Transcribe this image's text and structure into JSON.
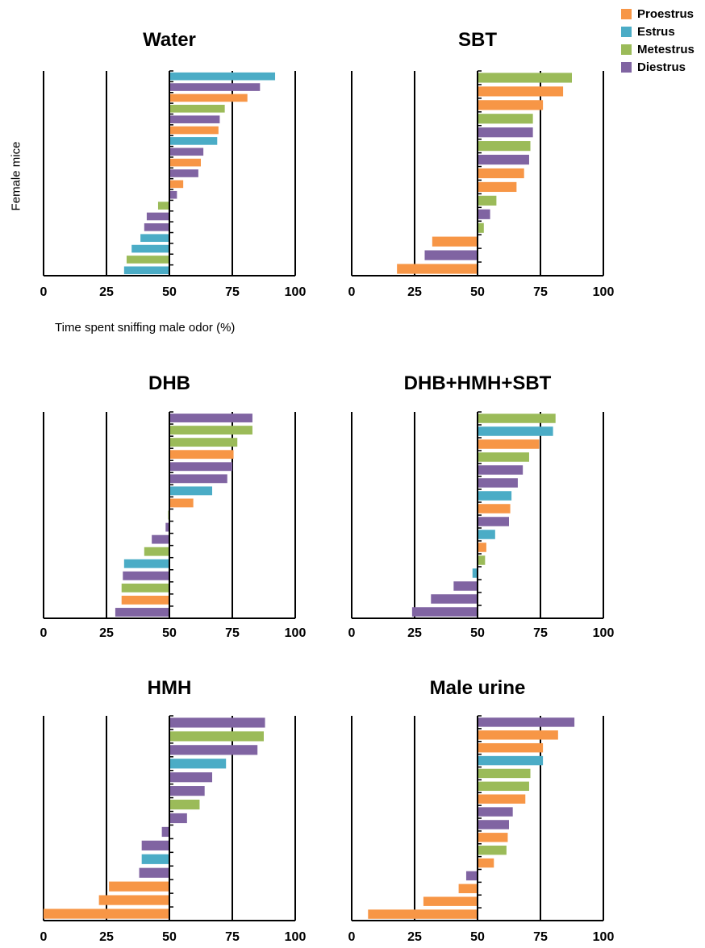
{
  "legend": [
    {
      "label": "Proestrus",
      "color": "#F79646"
    },
    {
      "label": "Estrus",
      "color": "#4BACC6"
    },
    {
      "label": "Metestrus",
      "color": "#9BBB59"
    },
    {
      "label": "Diestrus",
      "color": "#8064A2"
    }
  ],
  "ylabel": "Female mice",
  "xlabel": "Time spent  sniffing male odor (%)",
  "colors": {
    "Proestrus": "#F79646",
    "Estrus": "#4BACC6",
    "Metestrus": "#9BBB59",
    "Diestrus": "#8064A2"
  },
  "chart_data": [
    {
      "type": "bar",
      "orientation": "horizontal",
      "title": "Water",
      "xlim": [
        0,
        100
      ],
      "xticks": [
        "0",
        "25",
        "50",
        "75",
        "100"
      ],
      "baseline": 50,
      "bars": [
        {
          "stage": "Estrus",
          "value": 92
        },
        {
          "stage": "Diestrus",
          "value": 86
        },
        {
          "stage": "Proestrus",
          "value": 81
        },
        {
          "stage": "Metestrus",
          "value": 72
        },
        {
          "stage": "Diestrus",
          "value": 70
        },
        {
          "stage": "Proestrus",
          "value": 69.5
        },
        {
          "stage": "Estrus",
          "value": 69
        },
        {
          "stage": "Diestrus",
          "value": 63.5
        },
        {
          "stage": "Proestrus",
          "value": 62.5
        },
        {
          "stage": "Diestrus",
          "value": 61.5
        },
        {
          "stage": "Proestrus",
          "value": 55.5
        },
        {
          "stage": "Diestrus",
          "value": 53
        },
        {
          "stage": "Metestrus",
          "value": 45.5
        },
        {
          "stage": "Diestrus",
          "value": 41
        },
        {
          "stage": "Diestrus",
          "value": 40
        },
        {
          "stage": "Estrus",
          "value": 38.5
        },
        {
          "stage": "Estrus",
          "value": 35
        },
        {
          "stage": "Metestrus",
          "value": 33
        },
        {
          "stage": "Estrus",
          "value": 32
        }
      ]
    },
    {
      "type": "bar",
      "orientation": "horizontal",
      "title": "SBT",
      "xlim": [
        0,
        100
      ],
      "xticks": [
        "0",
        "25",
        "50",
        "75",
        "100"
      ],
      "baseline": 50,
      "bars": [
        {
          "stage": "Metestrus",
          "value": 87.5
        },
        {
          "stage": "Proestrus",
          "value": 84
        },
        {
          "stage": "Proestrus",
          "value": 76
        },
        {
          "stage": "Metestrus",
          "value": 72
        },
        {
          "stage": "Diestrus",
          "value": 72
        },
        {
          "stage": "Metestrus",
          "value": 71
        },
        {
          "stage": "Diestrus",
          "value": 70.5
        },
        {
          "stage": "Proestrus",
          "value": 68.5
        },
        {
          "stage": "Proestrus",
          "value": 65.5
        },
        {
          "stage": "Metestrus",
          "value": 57.5
        },
        {
          "stage": "Diestrus",
          "value": 55
        },
        {
          "stage": "Metestrus",
          "value": 52.5
        },
        {
          "stage": "Proestrus",
          "value": 32
        },
        {
          "stage": "Diestrus",
          "value": 29
        },
        {
          "stage": "Proestrus",
          "value": 18
        }
      ]
    },
    {
      "type": "bar",
      "orientation": "horizontal",
      "title": "DHB",
      "xlim": [
        0,
        100
      ],
      "xticks": [
        "0",
        "25",
        "50",
        "75",
        "100"
      ],
      "baseline": 50,
      "bars": [
        {
          "stage": "Diestrus",
          "value": 83
        },
        {
          "stage": "Metestrus",
          "value": 83
        },
        {
          "stage": "Metestrus",
          "value": 77
        },
        {
          "stage": "Proestrus",
          "value": 75.5
        },
        {
          "stage": "Diestrus",
          "value": 75
        },
        {
          "stage": "Diestrus",
          "value": 73
        },
        {
          "stage": "Estrus",
          "value": 67
        },
        {
          "stage": "Proestrus",
          "value": 59.5
        },
        {
          "stage": "Metestrus",
          "value": 49.5
        },
        {
          "stage": "Diestrus",
          "value": 48.5
        },
        {
          "stage": "Diestrus",
          "value": 43
        },
        {
          "stage": "Metestrus",
          "value": 40
        },
        {
          "stage": "Estrus",
          "value": 32
        },
        {
          "stage": "Diestrus",
          "value": 31.5
        },
        {
          "stage": "Metestrus",
          "value": 31
        },
        {
          "stage": "Proestrus",
          "value": 31
        },
        {
          "stage": "Diestrus",
          "value": 28.5
        }
      ]
    },
    {
      "type": "bar",
      "orientation": "horizontal",
      "title": "DHB+HMH+SBT",
      "xlim": [
        0,
        100
      ],
      "xticks": [
        "0",
        "25",
        "50",
        "75",
        "100"
      ],
      "baseline": 50,
      "bars": [
        {
          "stage": "Metestrus",
          "value": 81
        },
        {
          "stage": "Estrus",
          "value": 80
        },
        {
          "stage": "Proestrus",
          "value": 74.5
        },
        {
          "stage": "Metestrus",
          "value": 70.5
        },
        {
          "stage": "Diestrus",
          "value": 68
        },
        {
          "stage": "Diestrus",
          "value": 66
        },
        {
          "stage": "Estrus",
          "value": 63.5
        },
        {
          "stage": "Proestrus",
          "value": 63
        },
        {
          "stage": "Diestrus",
          "value": 62.5
        },
        {
          "stage": "Estrus",
          "value": 57
        },
        {
          "stage": "Proestrus",
          "value": 53.5
        },
        {
          "stage": "Metestrus",
          "value": 53
        },
        {
          "stage": "Estrus",
          "value": 48
        },
        {
          "stage": "Diestrus",
          "value": 40.5
        },
        {
          "stage": "Diestrus",
          "value": 31.5
        },
        {
          "stage": "Diestrus",
          "value": 24
        }
      ]
    },
    {
      "type": "bar",
      "orientation": "horizontal",
      "title": "HMH",
      "xlim": [
        0,
        100
      ],
      "xticks": [
        "0",
        "25",
        "50",
        "75",
        "100"
      ],
      "baseline": 50,
      "bars": [
        {
          "stage": "Diestrus",
          "value": 88
        },
        {
          "stage": "Metestrus",
          "value": 87.5
        },
        {
          "stage": "Diestrus",
          "value": 85
        },
        {
          "stage": "Estrus",
          "value": 72.5
        },
        {
          "stage": "Diestrus",
          "value": 67
        },
        {
          "stage": "Diestrus",
          "value": 64
        },
        {
          "stage": "Metestrus",
          "value": 62
        },
        {
          "stage": "Diestrus",
          "value": 57
        },
        {
          "stage": "Diestrus",
          "value": 47
        },
        {
          "stage": "Diestrus",
          "value": 39
        },
        {
          "stage": "Estrus",
          "value": 39
        },
        {
          "stage": "Diestrus",
          "value": 38
        },
        {
          "stage": "Proestrus",
          "value": 26
        },
        {
          "stage": "Proestrus",
          "value": 22
        },
        {
          "stage": "Proestrus",
          "value": 0
        }
      ]
    },
    {
      "type": "bar",
      "orientation": "horizontal",
      "title": "Male urine",
      "xlim": [
        0,
        100
      ],
      "xticks": [
        "0",
        "25",
        "50",
        "75",
        "100"
      ],
      "baseline": 50,
      "bars": [
        {
          "stage": "Diestrus",
          "value": 88.5
        },
        {
          "stage": "Proestrus",
          "value": 82
        },
        {
          "stage": "Proestrus",
          "value": 76
        },
        {
          "stage": "Estrus",
          "value": 76
        },
        {
          "stage": "Metestrus",
          "value": 71
        },
        {
          "stage": "Metestrus",
          "value": 70.5
        },
        {
          "stage": "Proestrus",
          "value": 69
        },
        {
          "stage": "Diestrus",
          "value": 64
        },
        {
          "stage": "Diestrus",
          "value": 62.5
        },
        {
          "stage": "Proestrus",
          "value": 62
        },
        {
          "stage": "Metestrus",
          "value": 61.5
        },
        {
          "stage": "Proestrus",
          "value": 56.5
        },
        {
          "stage": "Diestrus",
          "value": 45.5
        },
        {
          "stage": "Proestrus",
          "value": 42.5
        },
        {
          "stage": "Proestrus",
          "value": 28.5
        },
        {
          "stage": "Proestrus",
          "value": 6.5
        }
      ]
    }
  ]
}
